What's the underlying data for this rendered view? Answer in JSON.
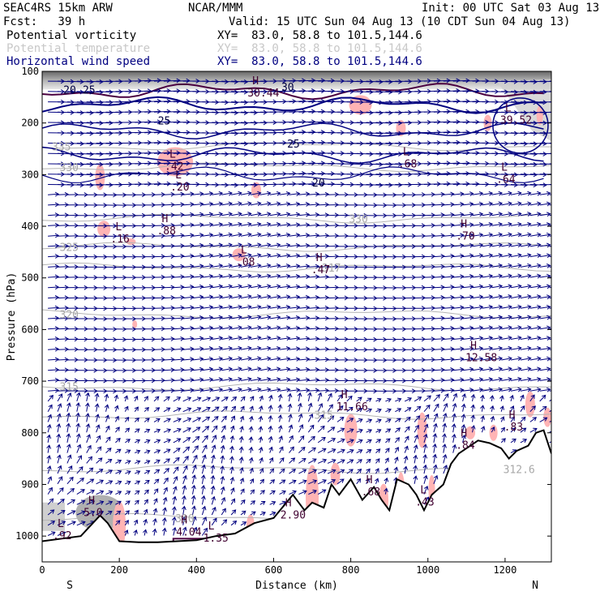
{
  "header": {
    "model": "SEAC4RS 15km ARW",
    "center": "NCAR/MMM",
    "init": "Init: 00 UTC Sat 03 Aug 13",
    "fcst": "Fcst:   39 h",
    "valid": "Valid: 15 UTC Sun 04 Aug 13 (10 CDT Sun 04 Aug 13)"
  },
  "fields": [
    {
      "name": "Potential vorticity",
      "xy": "XY=  83.0, 58.8 to 101.5,144.6",
      "color": "#000000"
    },
    {
      "name": "Potential temperature",
      "xy": "XY=  83.0, 58.8 to 101.5,144.6",
      "color": "#c8c8c8"
    },
    {
      "name": "Horizontal wind speed",
      "xy": "XY=  83.0, 58.8 to 101.5,144.6",
      "color": "#000080"
    }
  ],
  "colors": {
    "wind": "#000080",
    "pv_fill": "#ffb4b4",
    "theta": "#b4b4b4",
    "speed_contour": "#000080",
    "pv_contour": "#4a0040",
    "terrain": "#000000"
  },
  "chart_data": {
    "type": "cross-section",
    "xlabel": "Distance (km)",
    "ylabel": "Pressure (hPa)",
    "xlim": [
      0,
      1320
    ],
    "ylim": [
      1050,
      100
    ],
    "xticks": [
      0,
      200,
      400,
      600,
      800,
      1000,
      1200
    ],
    "yticks": [
      100,
      200,
      300,
      400,
      500,
      600,
      700,
      800,
      900,
      1000
    ],
    "end_labels": {
      "left": "S",
      "right": "N"
    },
    "terrain": [
      {
        "x": 0,
        "p": 1010
      },
      {
        "x": 100,
        "p": 1000
      },
      {
        "x": 150,
        "p": 960
      },
      {
        "x": 170,
        "p": 975
      },
      {
        "x": 200,
        "p": 1010
      },
      {
        "x": 250,
        "p": 1012
      },
      {
        "x": 300,
        "p": 1012
      },
      {
        "x": 350,
        "p": 1010
      },
      {
        "x": 400,
        "p": 1008
      },
      {
        "x": 450,
        "p": 1000
      },
      {
        "x": 500,
        "p": 995
      },
      {
        "x": 550,
        "p": 975
      },
      {
        "x": 600,
        "p": 965
      },
      {
        "x": 650,
        "p": 920
      },
      {
        "x": 680,
        "p": 950
      },
      {
        "x": 700,
        "p": 935
      },
      {
        "x": 730,
        "p": 945
      },
      {
        "x": 750,
        "p": 900
      },
      {
        "x": 770,
        "p": 920
      },
      {
        "x": 800,
        "p": 890
      },
      {
        "x": 830,
        "p": 930
      },
      {
        "x": 860,
        "p": 905
      },
      {
        "x": 880,
        "p": 930
      },
      {
        "x": 900,
        "p": 950
      },
      {
        "x": 920,
        "p": 890
      },
      {
        "x": 950,
        "p": 900
      },
      {
        "x": 970,
        "p": 920
      },
      {
        "x": 990,
        "p": 950
      },
      {
        "x": 1010,
        "p": 920
      },
      {
        "x": 1040,
        "p": 900
      },
      {
        "x": 1060,
        "p": 860
      },
      {
        "x": 1080,
        "p": 840
      },
      {
        "x": 1100,
        "p": 830
      },
      {
        "x": 1130,
        "p": 815
      },
      {
        "x": 1160,
        "p": 820
      },
      {
        "x": 1190,
        "p": 830
      },
      {
        "x": 1210,
        "p": 850
      },
      {
        "x": 1230,
        "p": 835
      },
      {
        "x": 1260,
        "p": 825
      },
      {
        "x": 1280,
        "p": 800
      },
      {
        "x": 1300,
        "p": 795
      },
      {
        "x": 1320,
        "p": 840
      }
    ],
    "theta_contours": [
      {
        "label": "335",
        "p": 245,
        "lx": 0
      },
      {
        "label": "330",
        "p": 285,
        "lx": 20
      },
      {
        "label": "330",
        "p": 385,
        "lx": 770
      },
      {
        "label": "325",
        "p": 440,
        "lx": 20
      },
      {
        "label": "317",
        "p": 480,
        "lx": 700
      },
      {
        "label": "320",
        "p": 570,
        "lx": 20
      },
      {
        "label": "315",
        "p": 710,
        "lx": 20
      },
      {
        "label": "315",
        "p": 765,
        "lx": 680
      },
      {
        "label": "312.6",
        "p": 870,
        "lx": 1170
      },
      {
        "label": "310",
        "p": 965,
        "lx": 320
      }
    ],
    "speed_labels": [
      {
        "text": "20",
        "x": 55,
        "p": 135
      },
      {
        "text": "25",
        "x": 105,
        "p": 135
      },
      {
        "text": "30",
        "x": 620,
        "p": 130
      },
      {
        "text": "25",
        "x": 300,
        "p": 195
      },
      {
        "text": "25",
        "x": 635,
        "p": 240
      },
      {
        "text": "20",
        "x": 700,
        "p": 315
      }
    ],
    "extrema": [
      {
        "type": "H",
        "x": 545,
        "p": 138,
        "value": "30.44"
      },
      {
        "type": "L",
        "x": 1200,
        "p": 190,
        "value": "39.52"
      },
      {
        "type": "L",
        "x": 330,
        "p": 280,
        "value": ".42"
      },
      {
        "type": "L",
        "x": 935,
        "p": 275,
        "value": ".68"
      },
      {
        "type": "L",
        "x": 1190,
        "p": 305,
        "value": ".64"
      },
      {
        "type": "L",
        "x": 345,
        "p": 320,
        "value": ".20"
      },
      {
        "type": "H",
        "x": 310,
        "p": 405,
        "value": ".88"
      },
      {
        "type": "L",
        "x": 190,
        "p": 420,
        "value": ".16"
      },
      {
        "type": "H",
        "x": 1085,
        "p": 415,
        "value": ".70"
      },
      {
        "type": "L",
        "x": 515,
        "p": 465,
        "value": ".08"
      },
      {
        "type": "H",
        "x": 710,
        "p": 480,
        "value": ".47"
      },
      {
        "type": "H",
        "x": 1110,
        "p": 650,
        "value": "12.58"
      },
      {
        "type": "H",
        "x": 775,
        "p": 745,
        "value": "11.66"
      },
      {
        "type": "H",
        "x": 1210,
        "p": 785,
        "value": ".83"
      },
      {
        "type": "H",
        "x": 1085,
        "p": 820,
        "value": ".84"
      },
      {
        "type": "H",
        "x": 840,
        "p": 910,
        "value": ".68"
      },
      {
        "type": "L",
        "x": 980,
        "p": 930,
        "value": ".43"
      },
      {
        "type": "H",
        "x": 630,
        "p": 955,
        "value": "2.90"
      },
      {
        "type": "H",
        "x": 120,
        "p": 950,
        "value": "5.0"
      },
      {
        "type": "L",
        "x": 40,
        "p": 995,
        "value": ".92"
      },
      {
        "type": "H",
        "x": 360,
        "p": 988,
        "value": "4.04"
      },
      {
        "type": "L",
        "x": 430,
        "p": 1000,
        "value": "1.35"
      }
    ]
  }
}
